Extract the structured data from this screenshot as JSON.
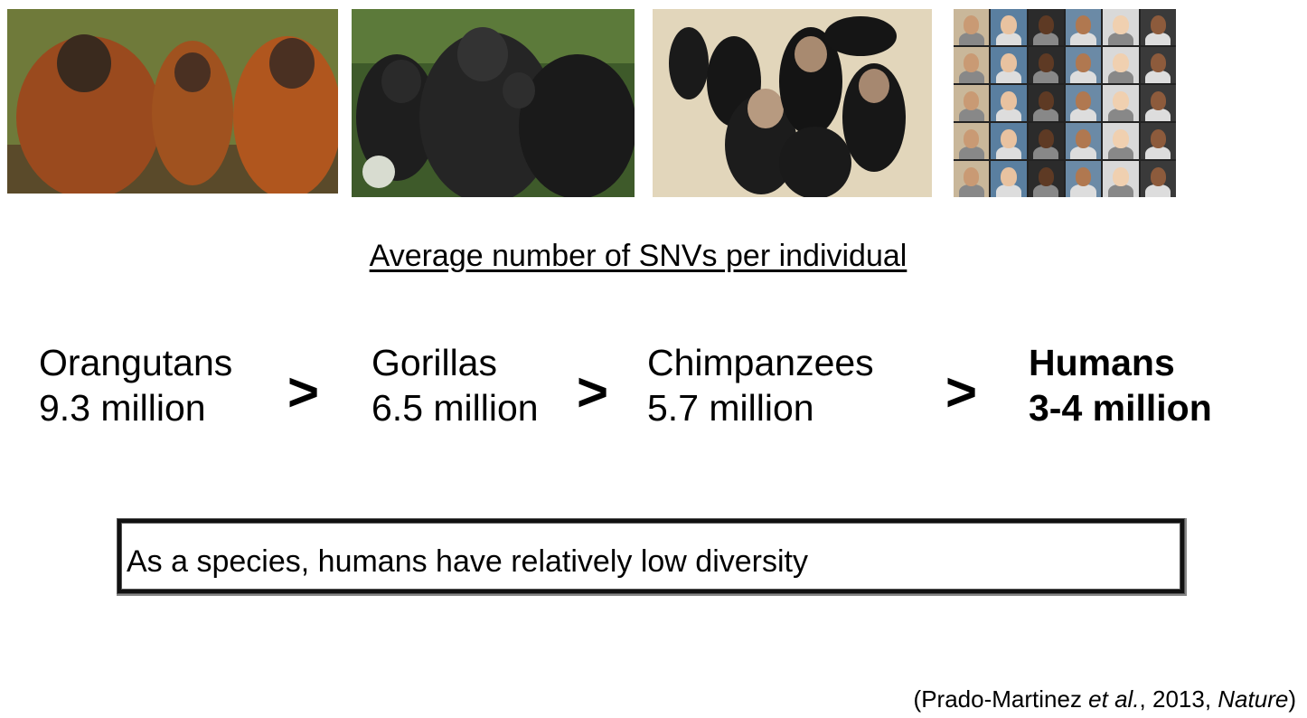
{
  "heading": "Average number of SNVs per individual",
  "species": [
    {
      "name": "Orangutans",
      "value": "9.3 million"
    },
    {
      "name": "Gorillas",
      "value": "6.5 million"
    },
    {
      "name": "Chimpanzees",
      "value": "5.7 million"
    },
    {
      "name": "Humans",
      "value": "3-4 million"
    }
  ],
  "comparator": ">",
  "callout": "As a species, humans have relatively low diversity",
  "citation": {
    "open": "(Prado-Martinez ",
    "etal": "et al.",
    "middle": ", 2013, ",
    "journal": "Nature",
    "close": ")"
  }
}
